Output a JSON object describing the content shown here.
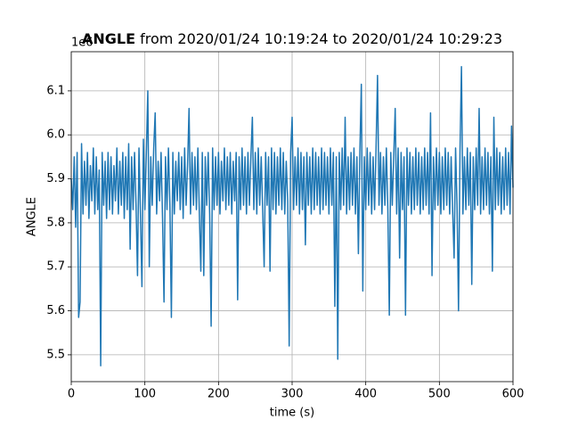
{
  "chart_data": {
    "type": "line",
    "title_bold": "ANGLE",
    "title": "from 2020/01/24 10:19:24 to 2020/01/24 10:29:23",
    "xlabel": "time (s)",
    "ylabel": "ANGLE",
    "y_offset_text": "1e6",
    "color": "#1f77b4",
    "grid": true,
    "xlim": [
      0,
      600
    ],
    "xticks": [
      0,
      100,
      200,
      300,
      400,
      500,
      600
    ],
    "ylim": [
      5.439,
      6.189
    ],
    "yticks": [
      5.5,
      5.6,
      5.7,
      5.8,
      5.9,
      {
        "value": 6,
        "label": "6.0"
      },
      6.1
    ],
    "x": [
      0,
      2,
      4,
      6,
      8,
      10,
      12,
      14,
      16,
      18,
      20,
      22,
      24,
      26,
      28,
      30,
      32,
      34,
      36,
      38,
      40,
      42,
      44,
      46,
      48,
      50,
      52,
      54,
      56,
      58,
      60,
      62,
      64,
      66,
      68,
      70,
      72,
      74,
      76,
      78,
      80,
      82,
      84,
      86,
      88,
      90,
      92,
      94,
      96,
      98,
      100,
      102,
      104,
      106,
      108,
      110,
      112,
      114,
      116,
      118,
      120,
      122,
      124,
      126,
      128,
      130,
      132,
      134,
      136,
      138,
      140,
      142,
      144,
      146,
      148,
      150,
      152,
      154,
      156,
      158,
      160,
      162,
      164,
      166,
      168,
      170,
      172,
      174,
      176,
      178,
      180,
      182,
      184,
      186,
      188,
      190,
      192,
      194,
      196,
      198,
      200,
      202,
      204,
      206,
      208,
      210,
      212,
      214,
      216,
      218,
      220,
      222,
      224,
      226,
      228,
      230,
      232,
      234,
      236,
      238,
      240,
      242,
      244,
      246,
      248,
      250,
      252,
      254,
      256,
      258,
      260,
      262,
      264,
      266,
      268,
      270,
      272,
      274,
      276,
      278,
      280,
      282,
      284,
      286,
      288,
      290,
      292,
      294,
      296,
      298,
      300,
      302,
      304,
      306,
      308,
      310,
      312,
      314,
      316,
      318,
      320,
      322,
      324,
      326,
      328,
      330,
      332,
      334,
      336,
      338,
      340,
      342,
      344,
      346,
      348,
      350,
      352,
      354,
      356,
      358,
      360,
      362,
      364,
      366,
      368,
      370,
      372,
      374,
      376,
      378,
      380,
      382,
      384,
      386,
      388,
      390,
      392,
      394,
      396,
      398,
      400,
      402,
      404,
      406,
      408,
      410,
      412,
      414,
      416,
      418,
      420,
      422,
      424,
      426,
      428,
      430,
      432,
      434,
      436,
      438,
      440,
      442,
      444,
      446,
      448,
      450,
      452,
      454,
      456,
      458,
      460,
      462,
      464,
      466,
      468,
      470,
      472,
      474,
      476,
      478,
      480,
      482,
      484,
      486,
      488,
      490,
      492,
      494,
      496,
      498,
      500,
      502,
      504,
      506,
      508,
      510,
      512,
      514,
      516,
      518,
      520,
      522,
      524,
      526,
      528,
      530,
      532,
      534,
      536,
      538,
      540,
      542,
      544,
      546,
      548,
      550,
      552,
      554,
      556,
      558,
      560,
      562,
      564,
      566,
      568,
      570,
      572,
      574,
      576,
      578,
      580,
      582,
      584,
      586,
      588,
      590,
      592,
      594,
      596,
      598,
      600
    ],
    "values": [
      5.9,
      5.83,
      5.95,
      5.79,
      5.96,
      5.585,
      5.62,
      5.98,
      5.82,
      5.94,
      5.84,
      5.96,
      5.81,
      5.93,
      5.85,
      5.97,
      5.82,
      5.95,
      5.83,
      5.92,
      5.475,
      5.96,
      5.84,
      5.94,
      5.81,
      5.96,
      5.83,
      5.95,
      5.82,
      5.93,
      5.85,
      5.97,
      5.82,
      5.94,
      5.84,
      5.96,
      5.81,
      5.95,
      5.83,
      5.98,
      5.74,
      5.95,
      5.83,
      5.96,
      5.84,
      5.68,
      5.97,
      5.82,
      5.655,
      5.99,
      5.83,
      5.96,
      6.1,
      5.7,
      5.95,
      5.84,
      5.97,
      6.05,
      5.82,
      5.94,
      5.85,
      5.96,
      5.81,
      5.62,
      5.95,
      5.83,
      5.97,
      5.84,
      5.585,
      5.96,
      5.82,
      5.94,
      5.85,
      5.96,
      5.83,
      5.95,
      5.81,
      5.97,
      5.84,
      5.93,
      6.06,
      5.82,
      5.96,
      5.84,
      5.95,
      5.83,
      5.97,
      5.82,
      5.69,
      5.96,
      5.68,
      5.95,
      5.84,
      5.96,
      5.82,
      5.565,
      5.97,
      5.83,
      5.95,
      5.84,
      5.96,
      5.82,
      5.94,
      5.85,
      5.97,
      5.83,
      5.95,
      5.84,
      5.96,
      5.82,
      5.94,
      5.85,
      5.96,
      5.625,
      5.95,
      5.83,
      5.97,
      5.84,
      5.95,
      5.82,
      5.96,
      5.84,
      5.95,
      6.04,
      5.83,
      5.96,
      5.82,
      5.97,
      5.84,
      5.95,
      5.83,
      5.7,
      5.96,
      5.84,
      5.95,
      5.69,
      5.97,
      5.83,
      5.96,
      5.82,
      5.95,
      5.84,
      5.97,
      5.83,
      5.96,
      5.82,
      5.94,
      5.85,
      5.52,
      5.96,
      6.04,
      5.83,
      5.95,
      5.84,
      5.97,
      5.82,
      5.96,
      5.83,
      5.95,
      5.75,
      5.96,
      5.84,
      5.95,
      5.82,
      5.97,
      5.83,
      5.96,
      5.84,
      5.95,
      5.82,
      5.97,
      5.83,
      5.96,
      5.84,
      5.95,
      5.82,
      5.97,
      5.84,
      5.96,
      5.61,
      5.95,
      5.49,
      5.96,
      5.83,
      5.97,
      5.84,
      6.04,
      5.82,
      5.95,
      5.83,
      5.96,
      5.84,
      5.97,
      5.82,
      5.95,
      5.73,
      5.96,
      6.115,
      5.645,
      5.95,
      5.83,
      5.97,
      5.84,
      5.96,
      5.82,
      5.95,
      5.83,
      5.97,
      6.135,
      5.84,
      5.96,
      5.82,
      5.95,
      5.84,
      5.97,
      5.83,
      5.59,
      5.96,
      5.84,
      5.95,
      6.06,
      5.82,
      5.97,
      5.72,
      5.96,
      5.83,
      5.95,
      5.59,
      5.97,
      5.84,
      5.96,
      5.82,
      5.95,
      5.83,
      5.97,
      5.84,
      5.96,
      5.82,
      5.95,
      5.83,
      5.97,
      5.84,
      5.96,
      5.82,
      6.05,
      5.68,
      5.95,
      5.83,
      5.97,
      5.84,
      5.96,
      5.82,
      5.95,
      5.83,
      5.97,
      5.84,
      5.96,
      5.82,
      5.95,
      5.83,
      5.72,
      5.97,
      5.84,
      5.6,
      5.96,
      6.155,
      5.82,
      5.95,
      5.83,
      5.97,
      5.84,
      5.96,
      5.66,
      5.95,
      5.83,
      5.97,
      5.84,
      6.06,
      5.82,
      5.95,
      5.83,
      5.97,
      5.84,
      5.96,
      5.82,
      5.95,
      5.69,
      6.04,
      5.83,
      5.97,
      5.84,
      5.96,
      5.82,
      5.95,
      5.83,
      5.97,
      5.84,
      5.96,
      5.82,
      6.02,
      5.88
    ]
  }
}
